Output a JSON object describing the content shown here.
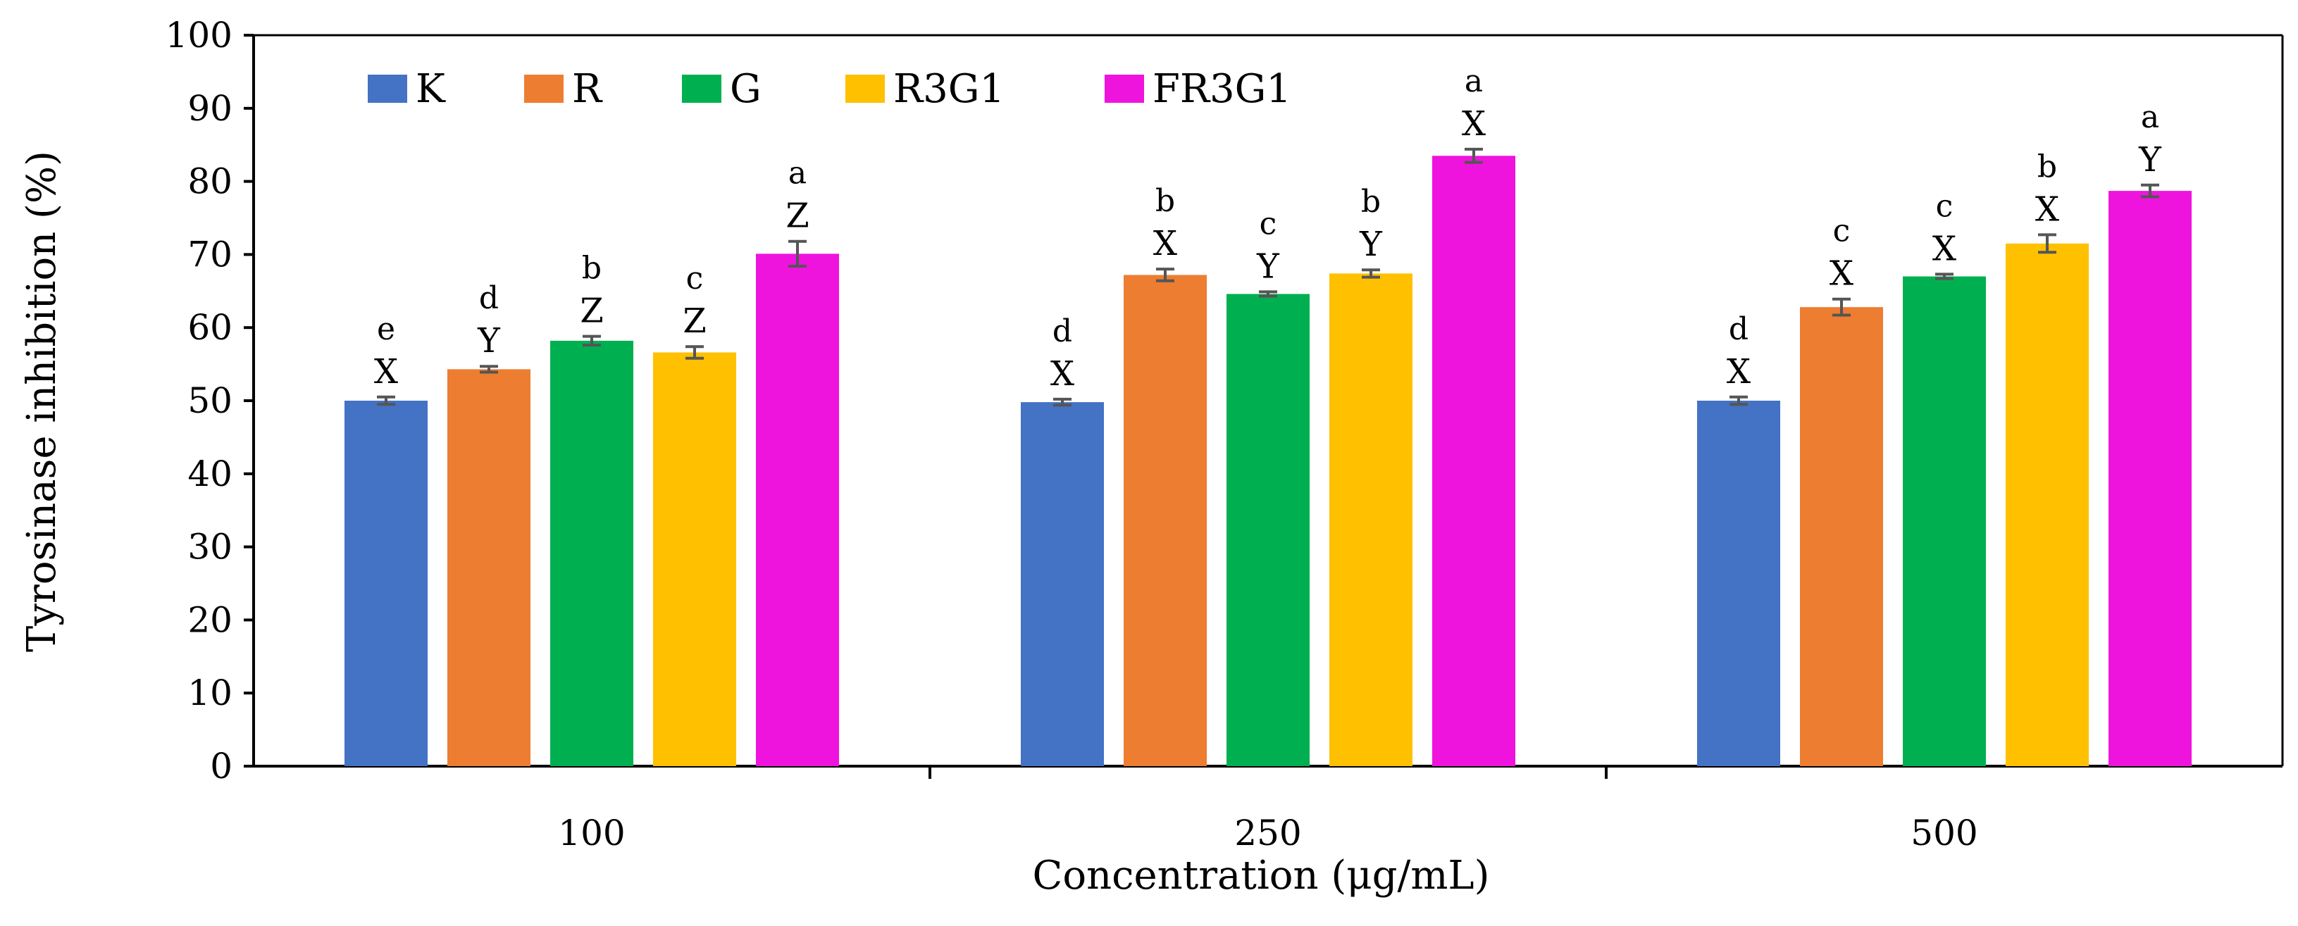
{
  "chart_data": {
    "type": "bar",
    "title": "",
    "xlabel": "Concentration (μg/mL)",
    "ylabel": "Tyrosinase inhibition (%)",
    "ylim": [
      0,
      100
    ],
    "yticks": [
      "0",
      "10",
      "20",
      "30",
      "40",
      "50",
      "60",
      "70",
      "80",
      "90",
      "100"
    ],
    "grid": false,
    "legend_position": "top-left",
    "categories": [
      "100",
      "250",
      "500"
    ],
    "series": [
      {
        "name": "K",
        "color": "#4472C4",
        "values": [
          50.0,
          49.8,
          50.0
        ],
        "errors": [
          0.5,
          0.4,
          0.5
        ],
        "letters": [
          "e",
          "d",
          "d"
        ],
        "groups": [
          "X",
          "X",
          "X"
        ]
      },
      {
        "name": "R",
        "color": "#ED7D31",
        "values": [
          54.3,
          67.2,
          62.8
        ],
        "errors": [
          0.4,
          0.8,
          1.1
        ],
        "letters": [
          "d",
          "b",
          "c"
        ],
        "groups": [
          "Y",
          "X",
          "X"
        ]
      },
      {
        "name": "G",
        "color": "#00B050",
        "values": [
          58.2,
          64.6,
          67.0
        ],
        "errors": [
          0.6,
          0.3,
          0.3
        ],
        "letters": [
          "b",
          "c",
          "c"
        ],
        "groups": [
          "Z",
          "Y",
          "X"
        ]
      },
      {
        "name": "R3G1",
        "color": "#FFC000",
        "values": [
          56.6,
          67.4,
          71.5
        ],
        "errors": [
          0.8,
          0.5,
          1.2
        ],
        "letters": [
          "c",
          "b",
          "b"
        ],
        "groups": [
          "Z",
          "Y",
          "X"
        ]
      },
      {
        "name": "FR3G1",
        "color": "#EE14DD",
        "values": [
          70.1,
          83.5,
          78.7
        ],
        "errors": [
          1.7,
          0.9,
          0.8
        ],
        "letters": [
          "a",
          "a",
          "a"
        ],
        "groups": [
          "Z",
          "X",
          "Y"
        ]
      }
    ]
  }
}
